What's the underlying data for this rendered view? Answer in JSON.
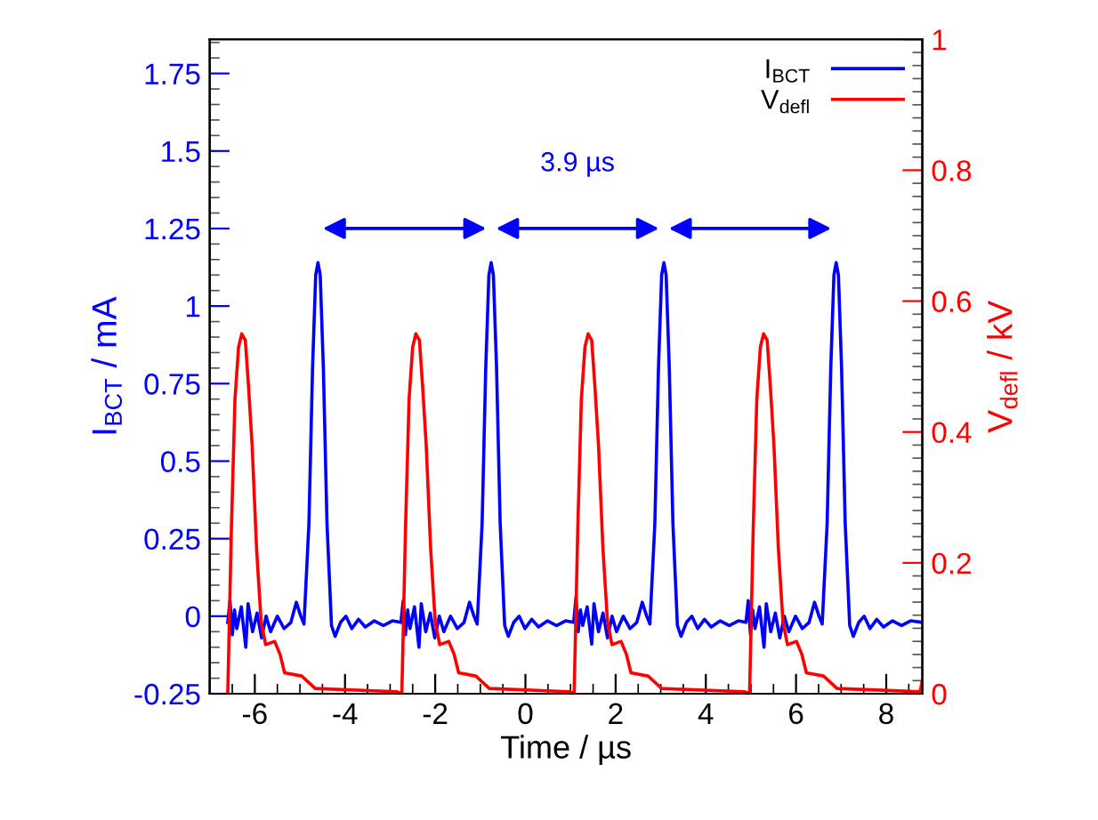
{
  "chart_data": {
    "type": "line",
    "xlabel": "Time / µs",
    "ylabel": "I$_{BCT}$ / mA",
    "y2label": "V$_{defl}$ / kV",
    "xlim": [
      -7,
      8.8
    ],
    "xticks": [
      -6,
      -4,
      -2,
      0,
      2,
      4,
      6,
      8
    ],
    "ylim": [
      -0.25,
      1.86
    ],
    "yticks": [
      -0.25,
      0,
      0.25,
      0.5,
      0.75,
      1,
      1.25,
      1.5,
      1.75
    ],
    "y2lim": [
      0,
      1
    ],
    "y2ticks": [
      0,
      0.2,
      0.4,
      0.6,
      0.8,
      1
    ],
    "grid": false,
    "legend": "top right",
    "marker": "none",
    "line_style": "solid",
    "annotations": [
      "3.9 µs"
    ],
    "series": [
      {
        "name": "I$_{BCT}$",
        "color": "#0000ff",
        "x": [
          -6.6,
          -6.55,
          -6.5,
          -6.45,
          -6.4,
          -6.3,
          -6.2,
          -6.15,
          -6.05,
          -5.95,
          -5.85,
          -5.75,
          -5.65,
          -5.5,
          -5.35,
          -5.2,
          -5.08,
          -4.98,
          -4.91,
          -4.8,
          -4.72,
          -4.65,
          -4.6,
          -4.55,
          -4.48,
          -4.4,
          -4.3,
          -4.22,
          -4.1,
          -3.98,
          -3.85,
          -3.7,
          -3.55,
          -3.35,
          -3.15,
          -2.95,
          -2.76,
          -2.71,
          -2.66,
          -2.61,
          -2.56,
          -2.46,
          -2.36,
          -2.31,
          -2.21,
          -2.11,
          -2.01,
          -1.91,
          -1.81,
          -1.66,
          -1.51,
          -1.36,
          -1.24,
          -1.14,
          -1.07,
          -0.96,
          -0.88,
          -0.81,
          -0.76,
          -0.71,
          -0.64,
          -0.56,
          -0.46,
          -0.38,
          -0.26,
          -0.14,
          -0.01,
          0.14,
          0.29,
          0.49,
          0.69,
          0.89,
          1.07,
          1.12,
          1.17,
          1.22,
          1.27,
          1.37,
          1.47,
          1.52,
          1.62,
          1.72,
          1.82,
          1.92,
          2.02,
          2.17,
          2.32,
          2.47,
          2.59,
          2.69,
          2.76,
          2.87,
          2.95,
          3.02,
          3.07,
          3.12,
          3.19,
          3.27,
          3.37,
          3.45,
          3.57,
          3.69,
          3.82,
          3.97,
          4.12,
          4.32,
          4.52,
          4.72,
          4.89,
          4.94,
          4.99,
          5.04,
          5.09,
          5.19,
          5.29,
          5.34,
          5.44,
          5.54,
          5.64,
          5.74,
          5.84,
          5.99,
          6.14,
          6.29,
          6.41,
          6.51,
          6.58,
          6.69,
          6.77,
          6.84,
          6.89,
          6.94,
          7.01,
          7.09,
          7.19,
          7.27,
          7.39,
          7.51,
          7.64,
          7.79,
          7.94,
          8.14,
          8.34,
          8.54,
          8.8
        ],
        "values": [
          -0.02,
          0.05,
          -0.06,
          0.02,
          -0.04,
          0.03,
          -0.1,
          0.04,
          -0.05,
          0.01,
          -0.07,
          0.0,
          -0.05,
          0.0,
          -0.04,
          -0.02,
          0.045,
          0.0,
          -0.025,
          0.3,
          0.8,
          1.1,
          1.14,
          1.1,
          0.8,
          0.3,
          -0.03,
          -0.065,
          -0.02,
          0.0,
          -0.04,
          -0.01,
          -0.035,
          -0.015,
          -0.03,
          -0.015,
          -0.02,
          0.05,
          -0.06,
          0.02,
          -0.04,
          0.03,
          -0.1,
          0.04,
          -0.05,
          0.01,
          -0.07,
          0.0,
          -0.05,
          0.0,
          -0.04,
          -0.02,
          0.045,
          0.0,
          -0.025,
          0.3,
          0.8,
          1.1,
          1.14,
          1.1,
          0.8,
          0.3,
          -0.03,
          -0.065,
          -0.02,
          0.0,
          -0.04,
          -0.01,
          -0.035,
          -0.015,
          -0.03,
          -0.015,
          -0.02,
          0.06,
          -0.05,
          0.02,
          -0.03,
          0.03,
          -0.09,
          0.04,
          -0.05,
          0.01,
          -0.07,
          0.0,
          -0.05,
          0.0,
          -0.04,
          -0.02,
          0.045,
          0.0,
          -0.025,
          0.3,
          0.8,
          1.1,
          1.14,
          1.1,
          0.8,
          0.3,
          -0.03,
          -0.065,
          -0.02,
          0.0,
          -0.04,
          -0.01,
          -0.035,
          -0.015,
          -0.03,
          -0.015,
          -0.02,
          0.05,
          -0.06,
          0.02,
          -0.04,
          0.03,
          -0.1,
          0.04,
          -0.05,
          0.01,
          -0.07,
          0.0,
          -0.05,
          0.0,
          -0.04,
          -0.02,
          0.045,
          0.0,
          -0.025,
          0.3,
          0.8,
          1.1,
          1.14,
          1.1,
          0.8,
          0.3,
          -0.03,
          -0.065,
          -0.02,
          0.0,
          -0.04,
          -0.01,
          -0.035,
          -0.015,
          -0.03,
          -0.015,
          -0.02
        ]
      },
      {
        "name": "V$_{defl}$",
        "color": "#ff0000",
        "axis": "y2",
        "x": [
          -6.6,
          -6.52,
          -6.44,
          -6.36,
          -6.29,
          -6.21,
          -6.14,
          -6.06,
          -5.96,
          -5.86,
          -5.76,
          -5.56,
          -5.44,
          -5.34,
          -4.96,
          -4.66,
          -2.86,
          -2.74,
          -2.66,
          -2.58,
          -2.5,
          -2.43,
          -2.35,
          -2.28,
          -2.2,
          -2.1,
          -2.0,
          -1.9,
          -1.7,
          -1.58,
          -1.48,
          -1.1,
          -0.8,
          0.98,
          1.08,
          1.16,
          1.24,
          1.32,
          1.39,
          1.47,
          1.54,
          1.62,
          1.72,
          1.82,
          1.92,
          2.12,
          2.24,
          2.34,
          2.72,
          3.02,
          4.85,
          4.97,
          5.05,
          5.13,
          5.21,
          5.28,
          5.36,
          5.43,
          5.51,
          5.61,
          5.71,
          5.81,
          6.01,
          6.13,
          6.23,
          6.61,
          6.91,
          8.75,
          8.8
        ],
        "values": [
          0,
          0.25,
          0.45,
          0.53,
          0.55,
          0.54,
          0.47,
          0.38,
          0.22,
          0.11,
          0.075,
          0.08,
          0.06,
          0.032,
          0.027,
          0.008,
          0.003,
          0,
          0.25,
          0.45,
          0.53,
          0.55,
          0.54,
          0.47,
          0.38,
          0.22,
          0.11,
          0.075,
          0.08,
          0.06,
          0.032,
          0.027,
          0.008,
          0.003,
          0,
          0.25,
          0.45,
          0.53,
          0.55,
          0.54,
          0.47,
          0.38,
          0.22,
          0.11,
          0.075,
          0.08,
          0.06,
          0.032,
          0.027,
          0.008,
          0.003,
          0,
          0.25,
          0.45,
          0.53,
          0.55,
          0.54,
          0.47,
          0.38,
          0.22,
          0.11,
          0.075,
          0.08,
          0.06,
          0.032,
          0.027,
          0.008,
          0.003,
          0.02
        ]
      }
    ]
  }
}
